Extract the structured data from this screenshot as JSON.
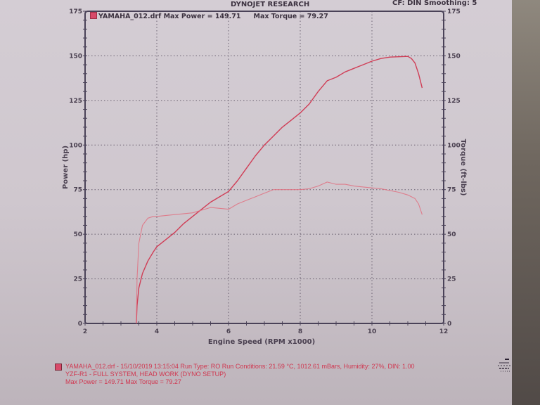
{
  "header": {
    "title": "DYNOJET RESEARCH",
    "cf_label": "CF: DIN  Smoothing: 5"
  },
  "legend": {
    "file": "YAMAHA_012.drf",
    "max_power": "Max Power = 149.71",
    "max_torque": "Max Torque = 79.27",
    "color": "#d84a6a"
  },
  "footer": {
    "line1": "YAMAHA_012.drf - 15/10/2019 13:15:04  Run Type: RO  Run Conditions: 21.59 °C, 1012.61 mBars,  Humidity: 27%, DIN: 1.00",
    "line2": "YZF-R1 - FULL SYSTEM, HEAD WORK (DYNO  SETUP)",
    "line3": "Max Power = 149.71  Max Torque = 79.27"
  },
  "chart_data": {
    "type": "line",
    "title": "DYNOJET RESEARCH",
    "xlabel": "Engine Speed (RPM x1000)",
    "ylabel": "Power (hp)",
    "y2label": "Torque (ft-lbs)",
    "xlim": [
      2,
      12
    ],
    "ylim": [
      0,
      175
    ],
    "y2lim": [
      0,
      175
    ],
    "xticks": [
      2,
      4,
      6,
      8,
      10,
      12
    ],
    "yticks": [
      0,
      25,
      50,
      75,
      100,
      125,
      150,
      175
    ],
    "grid": true,
    "legend_position": "top-left",
    "series": [
      {
        "name": "Power (hp)",
        "color": "#d0364f",
        "x": [
          3.43,
          3.45,
          3.5,
          3.6,
          3.75,
          3.9,
          4.0,
          4.25,
          4.5,
          4.75,
          5.0,
          5.25,
          5.5,
          5.75,
          6.0,
          6.25,
          6.5,
          6.75,
          7.0,
          7.25,
          7.5,
          7.75,
          8.0,
          8.25,
          8.5,
          8.75,
          9.0,
          9.25,
          9.5,
          9.75,
          10.0,
          10.25,
          10.5,
          10.75,
          11.0,
          11.1,
          11.2,
          11.3,
          11.4
        ],
        "values": [
          0,
          10,
          20,
          28,
          35,
          40,
          43,
          47,
          51,
          56,
          60,
          64,
          68,
          71,
          74,
          80,
          87,
          94,
          100,
          105,
          110,
          114,
          118,
          123,
          130,
          136,
          138,
          141,
          143,
          145,
          147,
          148.5,
          149.3,
          149.5,
          149.71,
          148.5,
          146,
          140,
          132
        ]
      },
      {
        "name": "Torque (ft-lbs)",
        "color": "#e07080",
        "x": [
          3.43,
          3.45,
          3.5,
          3.6,
          3.75,
          3.9,
          4.0,
          4.5,
          5.0,
          5.5,
          6.0,
          6.25,
          6.5,
          6.75,
          7.0,
          7.25,
          7.5,
          7.75,
          8.0,
          8.25,
          8.5,
          8.75,
          9.0,
          9.25,
          9.5,
          9.75,
          10.0,
          10.25,
          10.5,
          10.75,
          11.0,
          11.2,
          11.3,
          11.4
        ],
        "values": [
          0,
          25,
          45,
          55,
          59,
          60,
          60,
          61,
          62,
          65,
          64,
          67,
          69,
          71,
          73,
          75,
          75,
          75,
          75,
          75.5,
          77,
          79.27,
          78,
          78,
          77,
          76.5,
          76,
          75.5,
          74.5,
          73.5,
          72,
          70,
          67,
          61
        ]
      }
    ]
  }
}
